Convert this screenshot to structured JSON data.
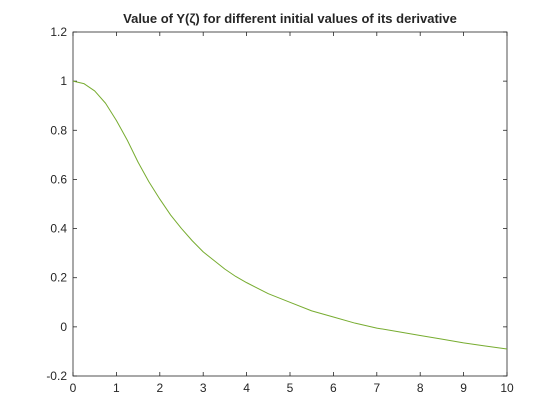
{
  "chart_data": {
    "type": "line",
    "title": "Value of Y(ζ) for different initial values of its derivative",
    "xlabel": "",
    "ylabel": "",
    "xlim": [
      0,
      10
    ],
    "ylim": [
      -0.2,
      1.2
    ],
    "x_ticks": [
      0,
      1,
      2,
      3,
      4,
      5,
      6,
      7,
      8,
      9,
      10
    ],
    "y_ticks": [
      -0.2,
      0,
      0.2,
      0.4,
      0.6,
      0.8,
      1,
      1.2
    ],
    "x_tick_labels": [
      "0",
      "1",
      "2",
      "3",
      "4",
      "5",
      "6",
      "7",
      "8",
      "9",
      "10"
    ],
    "y_tick_labels": [
      "-0.2",
      "0",
      "0.2",
      "0.4",
      "0.6",
      "0.8",
      "1",
      "1.2"
    ],
    "grid": false,
    "legend": "none",
    "series": [
      {
        "color": "#77AC30",
        "x": [
          0,
          0.25,
          0.5,
          0.75,
          1,
          1.25,
          1.5,
          1.75,
          2,
          2.25,
          2.5,
          2.75,
          3,
          3.25,
          3.5,
          3.75,
          4,
          4.5,
          5,
          5.5,
          6,
          6.5,
          7,
          7.5,
          8,
          8.5,
          9,
          9.5,
          10
        ],
        "y": [
          1.0,
          0.99,
          0.96,
          0.91,
          0.84,
          0.76,
          0.67,
          0.59,
          0.52,
          0.455,
          0.4,
          0.35,
          0.305,
          0.27,
          0.235,
          0.205,
          0.18,
          0.135,
          0.1,
          0.065,
          0.04,
          0.015,
          -0.005,
          -0.02,
          -0.035,
          -0.05,
          -0.065,
          -0.078,
          -0.09
        ]
      }
    ]
  }
}
